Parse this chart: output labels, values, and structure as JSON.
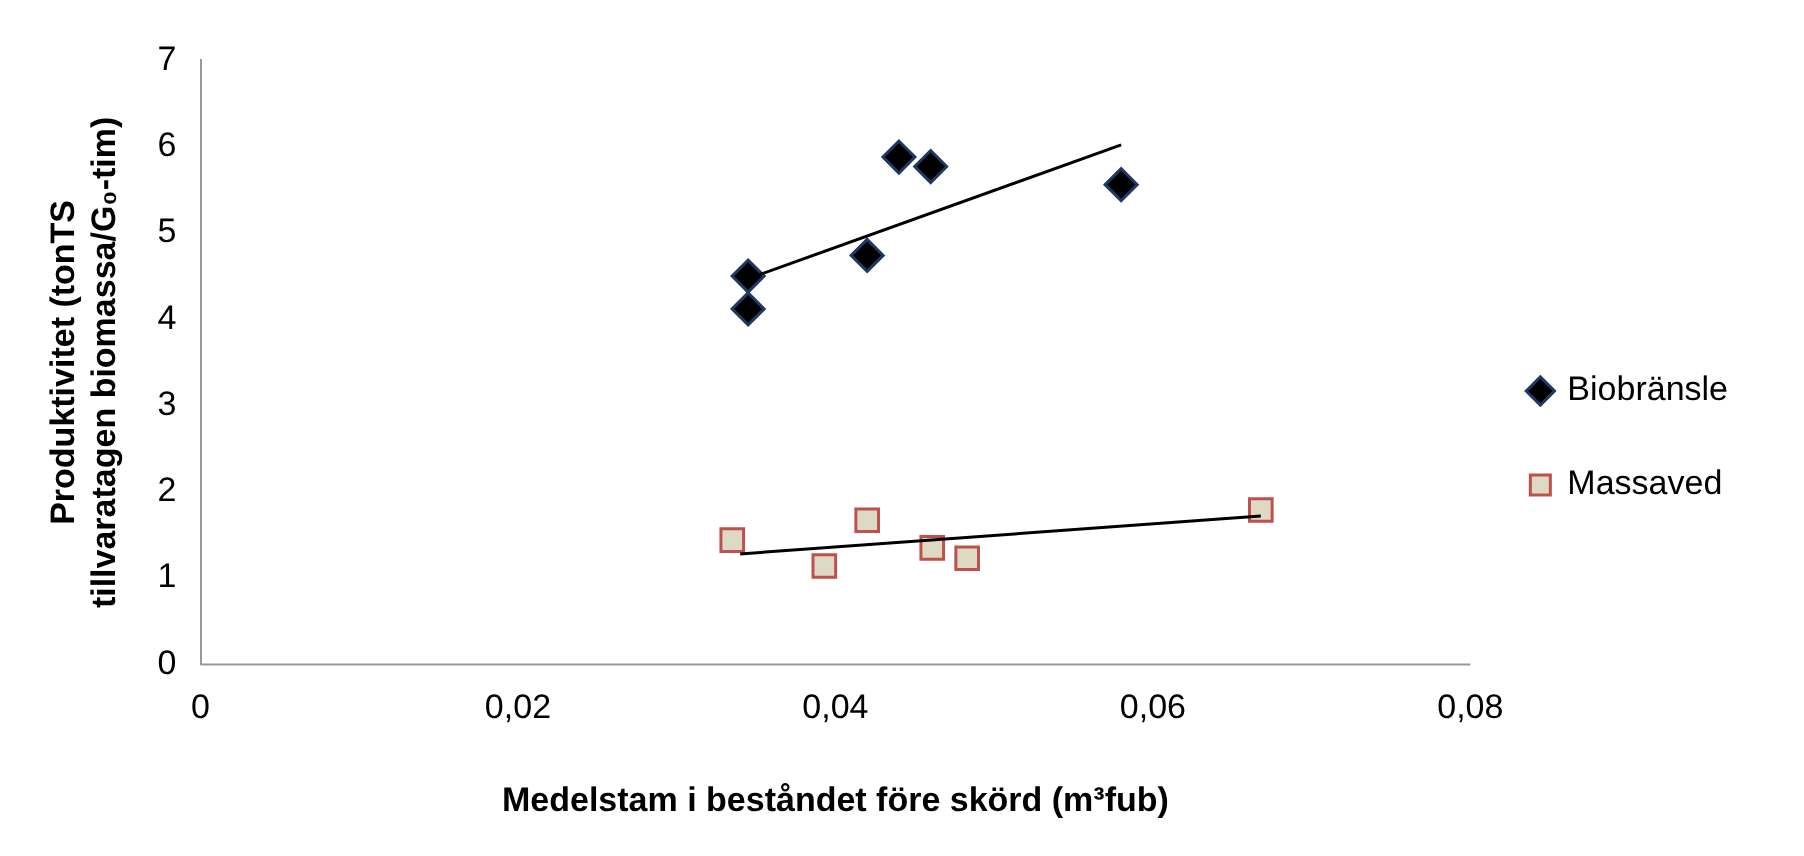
{
  "chart_data": {
    "type": "scatter",
    "xlabel": "Medelstam i beståndet före skörd (m³fub)",
    "ylabel": "Produktivitet (tonTS\ntillvaratagen biomassa/G₀-tim)",
    "xlim": [
      0,
      0.08
    ],
    "xticks": [
      0,
      {
        "value": 0.02,
        "label": "0,02"
      },
      {
        "value": 0.04,
        "label": "0,04"
      },
      {
        "value": 0.06,
        "label": "0,06"
      },
      {
        "value": 0.08,
        "label": "0,08"
      }
    ],
    "ylim": [
      0,
      7
    ],
    "yticks": [
      0,
      1,
      2,
      3,
      4,
      5,
      6,
      7
    ],
    "grid": false,
    "legend": "right",
    "series": [
      {
        "name": "Biobränsle",
        "color": "#000000",
        "marker": "diamond",
        "x": [
          0.0345,
          0.0345,
          0.042,
          0.044,
          0.046,
          0.058
        ],
        "values": [
          4.5,
          4.12,
          4.74,
          5.88,
          5.77,
          5.56
        ]
      },
      {
        "name": "Massaved",
        "color": "#ddd9c3",
        "marker": "square",
        "x": [
          0.0335,
          0.0393,
          0.042,
          0.0461,
          0.0483,
          0.0668
        ],
        "values": [
          1.44,
          1.14,
          1.67,
          1.35,
          1.23,
          1.79
        ]
      },
      {
        "type": "line",
        "color": "#000000",
        "marker": "none",
        "x": [
          0.0345,
          0.058
        ],
        "values": [
          4.47,
          6.02
        ]
      },
      {
        "type": "line",
        "color": "#000000",
        "marker": "none",
        "x": [
          0.034,
          0.0668
        ],
        "values": [
          1.28,
          1.72
        ]
      }
    ]
  }
}
